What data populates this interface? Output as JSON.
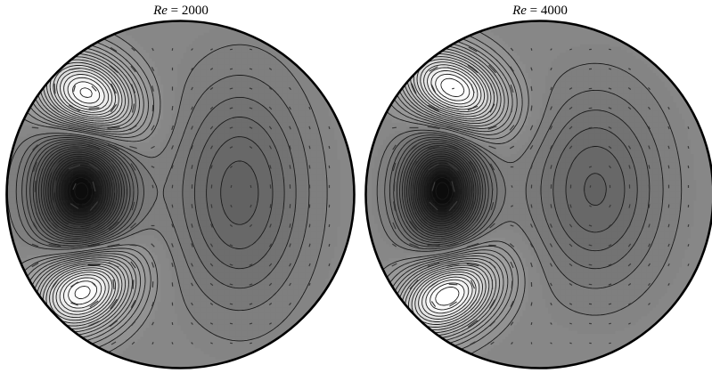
{
  "panels": [
    {
      "id": "left",
      "title": {
        "symbol": "Re",
        "equals": " = ",
        "value": "2000"
      }
    },
    {
      "id": "right",
      "title": {
        "symbol": "Re",
        "equals": " = ",
        "value": "4000"
      }
    }
  ],
  "colors": {
    "background_gray": "#878787",
    "contour_line": "#1a1a1a",
    "boundary": "#000000",
    "arrow": "#3a3a3a",
    "max_white": "#ffffff",
    "min_black": "#0b0b0b"
  }
}
